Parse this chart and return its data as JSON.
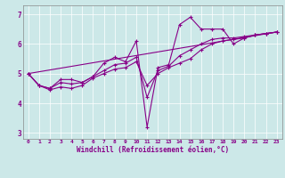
{
  "xlabel": "Windchill (Refroidissement éolien,°C)",
  "bg_color": "#cce8e8",
  "line_color": "#880088",
  "xlim": [
    -0.5,
    23.5
  ],
  "ylim": [
    2.8,
    7.3
  ],
  "xticks": [
    0,
    1,
    2,
    3,
    4,
    5,
    6,
    7,
    8,
    9,
    10,
    11,
    12,
    13,
    14,
    15,
    16,
    17,
    18,
    19,
    20,
    21,
    22,
    23
  ],
  "yticks": [
    3,
    4,
    5,
    6,
    7
  ],
  "lines": [
    {
      "x": [
        0,
        1,
        2,
        3,
        4,
        5,
        6,
        7,
        8,
        9,
        10,
        11,
        12,
        13,
        14,
        15,
        16,
        17,
        18,
        19,
        20,
        21,
        22,
        23
      ],
      "y": [
        5.0,
        4.6,
        4.45,
        4.55,
        4.5,
        4.6,
        4.85,
        5.0,
        5.15,
        5.2,
        5.4,
        4.6,
        5.0,
        5.2,
        5.35,
        5.5,
        5.8,
        6.0,
        6.1,
        6.15,
        6.2,
        6.3,
        6.35,
        6.4
      ],
      "marker": true
    },
    {
      "x": [
        0,
        1,
        2,
        3,
        4,
        5,
        6,
        7,
        8,
        9,
        10,
        11,
        12,
        13,
        14,
        15,
        16,
        17,
        18,
        19,
        20,
        21,
        22,
        23
      ],
      "y": [
        5.0,
        4.6,
        4.5,
        4.7,
        4.65,
        4.7,
        4.9,
        5.1,
        5.3,
        5.35,
        5.55,
        4.2,
        5.1,
        5.25,
        5.6,
        5.8,
        6.0,
        6.15,
        6.2,
        6.2,
        6.25,
        6.3,
        6.35,
        6.4
      ],
      "marker": true
    },
    {
      "x": [
        0,
        1,
        2,
        3,
        4,
        5,
        6,
        7,
        8,
        9,
        10,
        11,
        12,
        13,
        14,
        15,
        16,
        17,
        18,
        19,
        20,
        21,
        22,
        23
      ],
      "y": [
        5.0,
        4.6,
        4.5,
        4.8,
        4.8,
        4.7,
        4.9,
        5.35,
        5.55,
        5.4,
        6.1,
        3.2,
        5.2,
        5.3,
        6.65,
        6.9,
        6.5,
        6.5,
        6.5,
        6.0,
        6.2,
        6.3,
        6.35,
        6.4
      ],
      "marker": true
    },
    {
      "x": [
        0,
        23
      ],
      "y": [
        5.0,
        6.4
      ],
      "marker": false
    }
  ]
}
